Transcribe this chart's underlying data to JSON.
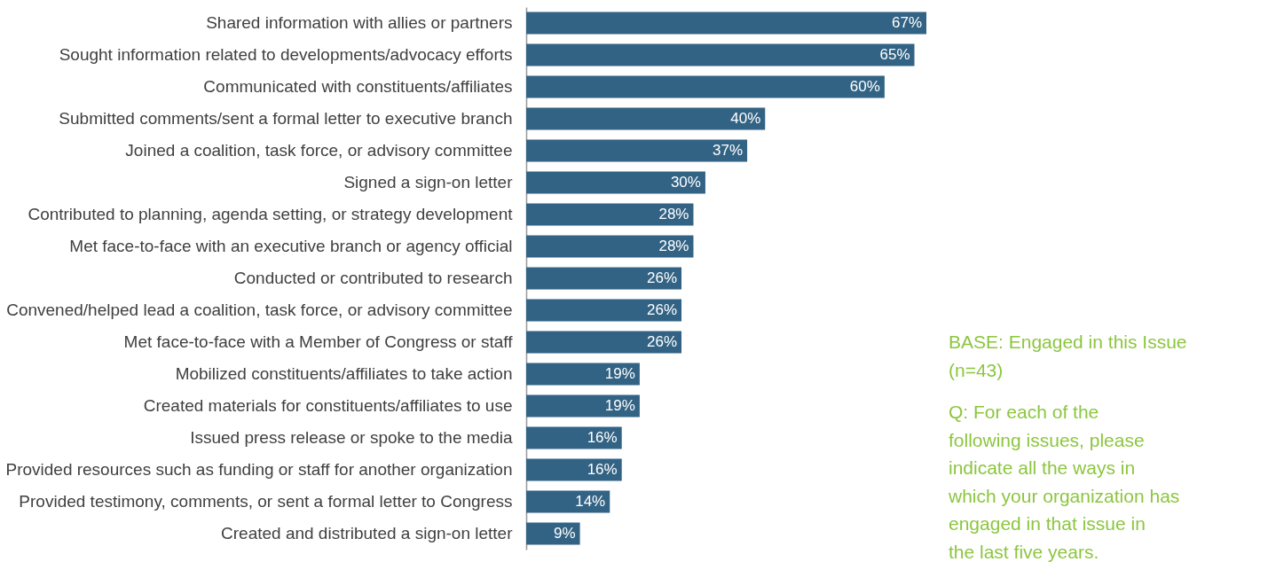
{
  "chart_data": {
    "type": "bar",
    "orientation": "horizontal",
    "categories": [
      "Shared information with allies or partners",
      "Sought information related to developments/advocacy efforts",
      "Communicated with constituents/affiliates",
      "Submitted comments/sent a formal letter to executive branch",
      "Joined a coalition, task force, or advisory committee",
      "Signed a sign-on letter",
      "Contributed to planning, agenda setting, or strategy development",
      "Met face-to-face with an executive branch or agency official",
      "Conducted or contributed to research",
      "Convened/helped lead a coalition, task force, or advisory committee",
      "Met face-to-face with a Member of Congress or staff",
      "Mobilized constituents/affiliates to take action",
      "Created materials for constituents/affiliates to use",
      "Issued press release or spoke to the media",
      "Provided resources such as funding or staff for another organization",
      "Provided testimony, comments, or sent a formal letter to Congress",
      "Created and distributed a sign-on letter"
    ],
    "values": [
      67,
      65,
      60,
      40,
      37,
      30,
      28,
      28,
      26,
      26,
      26,
      19,
      19,
      16,
      16,
      14,
      9
    ],
    "value_labels": [
      "67%",
      "65%",
      "60%",
      "40%",
      "37%",
      "30%",
      "28%",
      "28%",
      "26%",
      "26%",
      "26%",
      "19%",
      "19%",
      "16%",
      "16%",
      "14%",
      "9%"
    ],
    "color": "#336384",
    "annotations": [
      "BASE: Engaged in this Issue (n=43)",
      "Q: For each of the following issues, please indicate all the ways in which your organization has engaged in that issue in the last five years."
    ]
  }
}
